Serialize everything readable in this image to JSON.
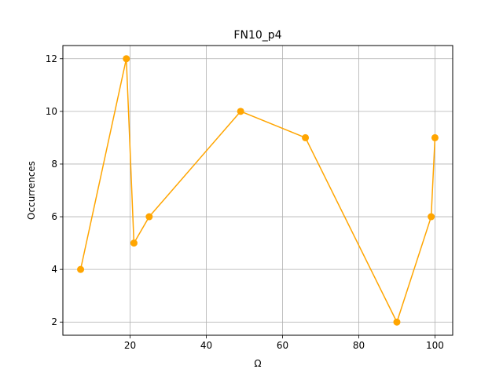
{
  "chart_data": {
    "type": "line",
    "title": "FN10_p4",
    "xlabel": "Ω",
    "ylabel": "Occurrences",
    "xlim": [
      2.35,
      104.65
    ],
    "ylim": [
      1.5,
      12.5
    ],
    "xticks": [
      20,
      40,
      60,
      80,
      100
    ],
    "yticks": [
      2,
      4,
      6,
      8,
      10,
      12
    ],
    "grid": true,
    "series": [
      {
        "color": "#ffa500",
        "marker": "circle",
        "points": [
          {
            "x": 7,
            "y": 4
          },
          {
            "x": 19,
            "y": 12
          },
          {
            "x": 21,
            "y": 5
          },
          {
            "x": 25,
            "y": 6
          },
          {
            "x": 49,
            "y": 10
          },
          {
            "x": 66,
            "y": 9
          },
          {
            "x": 90,
            "y": 2
          },
          {
            "x": 99,
            "y": 6
          },
          {
            "x": 100,
            "y": 9
          }
        ]
      }
    ]
  }
}
